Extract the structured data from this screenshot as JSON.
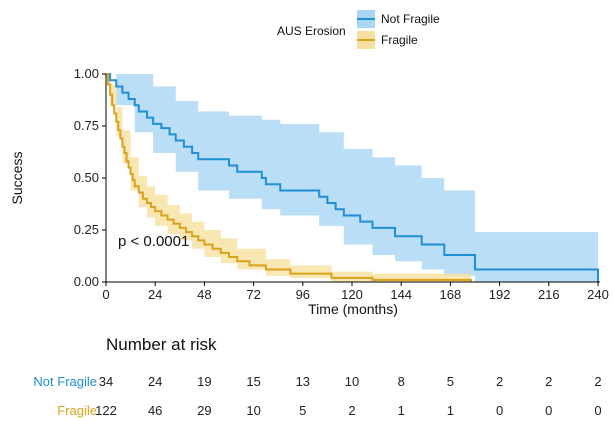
{
  "chart_data": {
    "type": "line",
    "title": "",
    "xlabel": "Time (months)",
    "ylabel": "Success",
    "xlim": [
      0,
      240
    ],
    "ylim": [
      0,
      1
    ],
    "x_ticks": [
      0,
      24,
      48,
      72,
      96,
      120,
      144,
      168,
      192,
      216,
      240
    ],
    "y_ticks": [
      "0.00",
      "0.25",
      "0.50",
      "0.75",
      "1.00"
    ],
    "grid": false,
    "legend_title": "AUS Erosion",
    "legend_position": "top",
    "annotation": "p < 0.0001",
    "series": [
      {
        "name": "Not Fragile",
        "color": "#1f8fd6",
        "band_color": "#a9d6f2",
        "steps": [
          [
            0,
            1.0
          ],
          [
            2,
            0.97
          ],
          [
            5,
            0.94
          ],
          [
            8,
            0.91
          ],
          [
            11,
            0.88
          ],
          [
            14,
            0.85
          ],
          [
            16,
            0.82
          ],
          [
            20,
            0.79
          ],
          [
            23,
            0.76
          ],
          [
            27,
            0.74
          ],
          [
            31,
            0.71
          ],
          [
            34,
            0.68
          ],
          [
            38,
            0.65
          ],
          [
            42,
            0.62
          ],
          [
            45,
            0.59
          ],
          [
            60,
            0.56
          ],
          [
            64,
            0.53
          ],
          [
            76,
            0.5
          ],
          [
            78,
            0.47
          ],
          [
            85,
            0.44
          ],
          [
            104,
            0.41
          ],
          [
            108,
            0.38
          ],
          [
            112,
            0.35
          ],
          [
            116,
            0.32
          ],
          [
            124,
            0.29
          ],
          [
            130,
            0.26
          ],
          [
            141,
            0.22
          ],
          [
            154,
            0.18
          ],
          [
            165,
            0.13
          ],
          [
            180,
            0.06
          ],
          [
            240,
            0.0
          ]
        ],
        "band": [
          [
            0,
            1.0,
            1.0
          ],
          [
            5,
            1.0,
            0.85
          ],
          [
            14,
            1.0,
            0.72
          ],
          [
            23,
            0.94,
            0.62
          ],
          [
            34,
            0.87,
            0.53
          ],
          [
            45,
            0.82,
            0.44
          ],
          [
            60,
            0.8,
            0.4
          ],
          [
            76,
            0.78,
            0.35
          ],
          [
            85,
            0.76,
            0.32
          ],
          [
            104,
            0.72,
            0.27
          ],
          [
            116,
            0.64,
            0.18
          ],
          [
            130,
            0.6,
            0.13
          ],
          [
            141,
            0.56,
            0.1
          ],
          [
            154,
            0.5,
            0.06
          ],
          [
            165,
            0.44,
            0.03
          ],
          [
            180,
            0.24,
            0.0
          ],
          [
            240,
            0.24,
            0.0
          ]
        ]
      },
      {
        "name": "Fragile",
        "color": "#d9a21a",
        "band_color": "#f6e0a0",
        "steps": [
          [
            0,
            1.0
          ],
          [
            1,
            0.95
          ],
          [
            2,
            0.9
          ],
          [
            3,
            0.85
          ],
          [
            4,
            0.81
          ],
          [
            5,
            0.77
          ],
          [
            6,
            0.73
          ],
          [
            7,
            0.69
          ],
          [
            8,
            0.65
          ],
          [
            9,
            0.62
          ],
          [
            10,
            0.58
          ],
          [
            11,
            0.55
          ],
          [
            12,
            0.52
          ],
          [
            13,
            0.49
          ],
          [
            14,
            0.46
          ],
          [
            16,
            0.43
          ],
          [
            18,
            0.4
          ],
          [
            20,
            0.38
          ],
          [
            22,
            0.36
          ],
          [
            24,
            0.34
          ],
          [
            27,
            0.32
          ],
          [
            30,
            0.3
          ],
          [
            33,
            0.28
          ],
          [
            36,
            0.26
          ],
          [
            39,
            0.24
          ],
          [
            42,
            0.22
          ],
          [
            45,
            0.2
          ],
          [
            48,
            0.18
          ],
          [
            52,
            0.16
          ],
          [
            56,
            0.14
          ],
          [
            60,
            0.12
          ],
          [
            64,
            0.1
          ],
          [
            70,
            0.08
          ],
          [
            78,
            0.06
          ],
          [
            90,
            0.04
          ],
          [
            110,
            0.02
          ],
          [
            130,
            0.01
          ],
          [
            178,
            0.0
          ]
        ],
        "band": [
          [
            0,
            1.0,
            1.0
          ],
          [
            2,
            0.95,
            0.85
          ],
          [
            5,
            0.84,
            0.7
          ],
          [
            8,
            0.73,
            0.57
          ],
          [
            12,
            0.6,
            0.44
          ],
          [
            16,
            0.51,
            0.36
          ],
          [
            20,
            0.46,
            0.31
          ],
          [
            24,
            0.42,
            0.27
          ],
          [
            30,
            0.37,
            0.23
          ],
          [
            36,
            0.33,
            0.2
          ],
          [
            42,
            0.29,
            0.16
          ],
          [
            48,
            0.25,
            0.12
          ],
          [
            56,
            0.21,
            0.09
          ],
          [
            64,
            0.16,
            0.06
          ],
          [
            78,
            0.11,
            0.03
          ],
          [
            90,
            0.08,
            0.02
          ],
          [
            110,
            0.05,
            0.0
          ],
          [
            130,
            0.04,
            0.0
          ],
          [
            178,
            0.03,
            0.0
          ]
        ]
      }
    ]
  },
  "risk_table": {
    "title": "Number at risk",
    "rows": [
      {
        "label": "Not Fragile",
        "color": "#1f8fd6",
        "values": [
          "34",
          "24",
          "19",
          "15",
          "13",
          "10",
          "8",
          "5",
          "2",
          "2",
          "2"
        ]
      },
      {
        "label": "Fragile",
        "color": "#d9a21a",
        "values": [
          "122",
          "46",
          "29",
          "10",
          "5",
          "2",
          "1",
          "1",
          "0",
          "0",
          "0"
        ]
      }
    ]
  }
}
